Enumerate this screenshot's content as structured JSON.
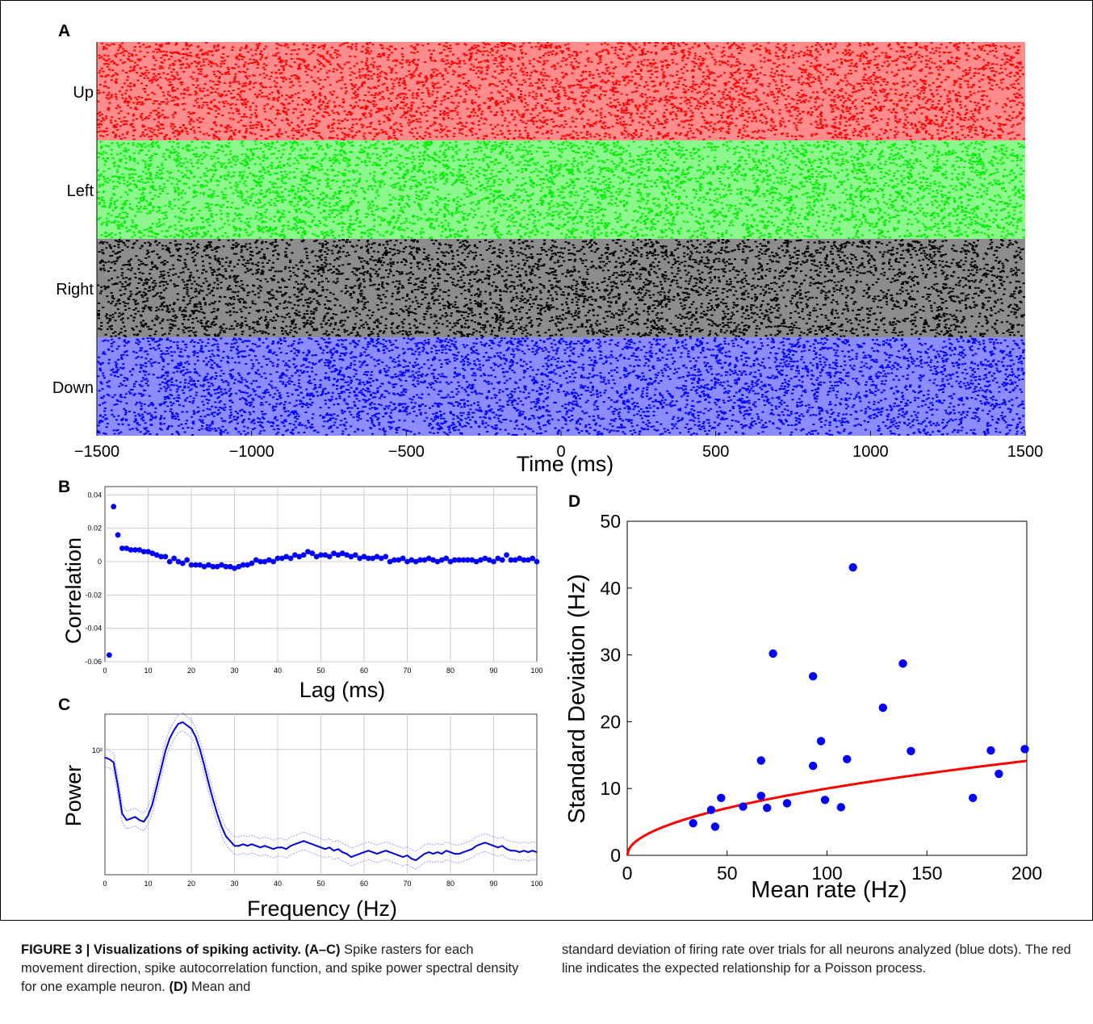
{
  "figure": {
    "panel_labels": {
      "A": "A",
      "B": "B",
      "C": "C",
      "D": "D"
    },
    "caption": {
      "label": "FIGURE 3 | Visualizations of spiking activity.",
      "range_label": "(A–C)",
      "part1": "Spike rasters for each movement direction, spike autocorrelation function, and spike power spectral density for one example neuron.",
      "d_label": "(D)",
      "part2": "Mean and",
      "part3": "standard deviation of firing rate over trials for all neurons analyzed (blue dots). The red line indicates the expected relationship for a Poisson process."
    }
  },
  "chart_data": [
    {
      "panel": "A",
      "type": "raster",
      "xlabel": "Time (ms)",
      "xlim": [
        -1500,
        1500
      ],
      "xticks": [
        "−1500",
        "−1000",
        "−500",
        "0",
        "500",
        "1000",
        "1500"
      ],
      "xtick_values": [
        -1500,
        -1000,
        -500,
        0,
        500,
        1000,
        1500
      ],
      "bands": [
        {
          "name": "Up",
          "color": "#ff0000"
        },
        {
          "name": "Left",
          "color": "#00ee00"
        },
        {
          "name": "Right",
          "color": "#000000"
        },
        {
          "name": "Down",
          "color": "#0000ff"
        }
      ]
    },
    {
      "panel": "B",
      "type": "scatter",
      "xlabel": "Lag (ms)",
      "ylabel": "Correlation",
      "xlim": [
        0,
        100
      ],
      "ylim": [
        -0.06,
        0.045
      ],
      "xticks": [
        "0",
        "10",
        "20",
        "30",
        "40",
        "50",
        "60",
        "70",
        "80",
        "90",
        "100"
      ],
      "yticks": [
        "0.04",
        "0.02",
        "0",
        "-0.02",
        "-0.04",
        "-0.06"
      ],
      "ytick_values": [
        0.04,
        0.02,
        0,
        -0.02,
        -0.04,
        -0.06
      ],
      "grid": true,
      "color": "#0000ff",
      "x": [
        1,
        2,
        3,
        4,
        5,
        6,
        7,
        8,
        9,
        10,
        11,
        12,
        13,
        14,
        15,
        16,
        17,
        18,
        19,
        20,
        21,
        22,
        23,
        24,
        25,
        26,
        27,
        28,
        29,
        30,
        31,
        32,
        33,
        34,
        35,
        36,
        37,
        38,
        39,
        40,
        41,
        42,
        43,
        44,
        45,
        46,
        47,
        48,
        49,
        50,
        51,
        52,
        53,
        54,
        55,
        56,
        57,
        58,
        59,
        60,
        61,
        62,
        63,
        64,
        65,
        66,
        67,
        68,
        69,
        70,
        71,
        72,
        73,
        74,
        75,
        76,
        77,
        78,
        79,
        80,
        81,
        82,
        83,
        84,
        85,
        86,
        87,
        88,
        89,
        90,
        91,
        92,
        93,
        94,
        95,
        96,
        97,
        98,
        99,
        100
      ],
      "y": [
        -0.056,
        0.033,
        0.016,
        0.008,
        0.008,
        0.007,
        0.007,
        0.007,
        0.006,
        0.006,
        0.005,
        0.004,
        0.003,
        0.003,
        0.0,
        0.002,
        0.0,
        -0.001,
        0.001,
        -0.002,
        -0.002,
        -0.002,
        -0.003,
        -0.002,
        -0.003,
        -0.003,
        -0.002,
        -0.003,
        -0.003,
        -0.004,
        -0.003,
        -0.002,
        -0.002,
        -0.001,
        0.001,
        0.0,
        0.0,
        0.001,
        0.0,
        0.002,
        0.002,
        0.003,
        0.002,
        0.004,
        0.003,
        0.004,
        0.006,
        0.005,
        0.003,
        0.004,
        0.004,
        0.003,
        0.005,
        0.004,
        0.005,
        0.004,
        0.003,
        0.004,
        0.002,
        0.003,
        0.002,
        0.002,
        0.003,
        0.002,
        0.003,
        0.0,
        0.001,
        0.001,
        0.002,
        0.0,
        0.001,
        0.0,
        0.001,
        0.001,
        0.002,
        0.001,
        0.0,
        0.001,
        0.002,
        0.0,
        0.001,
        0.001,
        0.001,
        0.001,
        0.001,
        0.0,
        0.001,
        0.002,
        0.001,
        0.0,
        0.002,
        0.001,
        0.004,
        0.001,
        0.001,
        0.002,
        0.001,
        0.001,
        0.002,
        0.0
      ]
    },
    {
      "panel": "C",
      "type": "line",
      "xlabel": "Frequency (Hz)",
      "ylabel": "Power",
      "xlim": [
        0,
        100
      ],
      "xticks": [
        "0",
        "10",
        "20",
        "30",
        "40",
        "50",
        "60",
        "70",
        "80",
        "90",
        "100"
      ],
      "ytick_label": "10²",
      "ylim": [
        0,
        1
      ],
      "grid": true,
      "color": "#0000dd",
      "band_color": "#9999ff",
      "x": [
        0,
        1,
        2,
        3,
        4,
        5,
        6,
        7,
        8,
        9,
        10,
        11,
        12,
        13,
        14,
        15,
        16,
        17,
        18,
        19,
        20,
        21,
        22,
        23,
        24,
        25,
        26,
        27,
        28,
        29,
        30,
        31,
        32,
        33,
        34,
        35,
        36,
        37,
        38,
        39,
        40,
        41,
        42,
        43,
        44,
        45,
        46,
        47,
        48,
        49,
        50,
        51,
        52,
        53,
        54,
        55,
        56,
        57,
        58,
        59,
        60,
        61,
        62,
        63,
        64,
        65,
        66,
        67,
        68,
        69,
        70,
        71,
        72,
        73,
        74,
        75,
        76,
        77,
        78,
        79,
        80,
        81,
        82,
        83,
        84,
        85,
        86,
        87,
        88,
        89,
        90,
        91,
        92,
        93,
        94,
        95,
        96,
        97,
        98,
        99,
        100
      ],
      "y": [
        0.73,
        0.72,
        0.7,
        0.55,
        0.38,
        0.34,
        0.35,
        0.36,
        0.34,
        0.33,
        0.37,
        0.44,
        0.55,
        0.66,
        0.77,
        0.85,
        0.9,
        0.94,
        0.95,
        0.93,
        0.91,
        0.86,
        0.78,
        0.68,
        0.57,
        0.47,
        0.38,
        0.3,
        0.24,
        0.21,
        0.18,
        0.18,
        0.19,
        0.18,
        0.19,
        0.18,
        0.17,
        0.18,
        0.17,
        0.16,
        0.17,
        0.17,
        0.16,
        0.18,
        0.19,
        0.2,
        0.21,
        0.2,
        0.19,
        0.18,
        0.17,
        0.16,
        0.17,
        0.15,
        0.16,
        0.14,
        0.13,
        0.11,
        0.12,
        0.13,
        0.14,
        0.15,
        0.14,
        0.13,
        0.14,
        0.15,
        0.14,
        0.13,
        0.12,
        0.11,
        0.12,
        0.1,
        0.09,
        0.11,
        0.13,
        0.14,
        0.13,
        0.14,
        0.13,
        0.15,
        0.14,
        0.13,
        0.13,
        0.14,
        0.15,
        0.16,
        0.18,
        0.19,
        0.2,
        0.19,
        0.18,
        0.17,
        0.18,
        0.16,
        0.15,
        0.15,
        0.14,
        0.15,
        0.14,
        0.15,
        0.14
      ]
    },
    {
      "panel": "D",
      "type": "scatter",
      "xlabel": "Mean rate (Hz)",
      "ylabel": "Standard Deviation (Hz)",
      "xlim": [
        0,
        200
      ],
      "ylim": [
        0,
        50
      ],
      "xticks": [
        "0",
        "50",
        "100",
        "150",
        "200"
      ],
      "xtick_values": [
        0,
        50,
        100,
        150,
        200
      ],
      "yticks": [
        "0",
        "10",
        "20",
        "30",
        "40",
        "50"
      ],
      "ytick_values": [
        0,
        10,
        20,
        30,
        40,
        50
      ],
      "grid": false,
      "point_color": "#0000ff",
      "line_color": "#ff0000",
      "x": [
        33,
        42,
        44,
        47,
        58,
        67,
        67,
        70,
        73,
        80,
        93,
        93,
        97,
        99,
        107,
        110,
        113,
        128,
        138,
        142,
        173,
        182,
        186,
        199
      ],
      "y": [
        4.8,
        6.8,
        4.3,
        8.6,
        7.3,
        14.2,
        8.9,
        7.1,
        30.2,
        7.8,
        26.8,
        13.4,
        17.1,
        8.3,
        7.2,
        14.4,
        43.1,
        22.1,
        28.7,
        15.6,
        8.6,
        15.7,
        12.2,
        15.9
      ],
      "fit": "sqrt"
    }
  ]
}
